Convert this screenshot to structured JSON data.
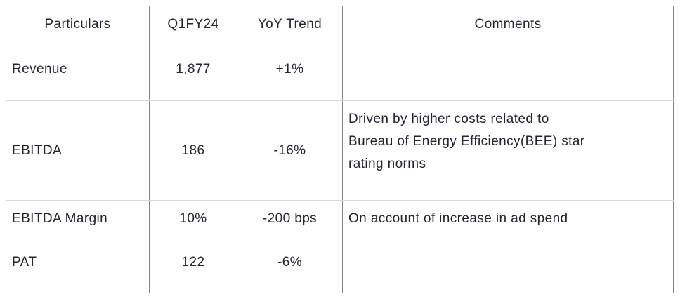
{
  "table": {
    "columns": [
      {
        "key": "particulars",
        "label": "Particulars"
      },
      {
        "key": "q1fy24",
        "label": "Q1FY24"
      },
      {
        "key": "yoy_trend",
        "label": "YoY Trend"
      },
      {
        "key": "comments",
        "label": "Comments"
      }
    ],
    "rows": [
      {
        "particulars": "Revenue",
        "q1fy24": "1,877",
        "yoy_trend": "+1%",
        "comments": ""
      },
      {
        "particulars": "EBITDA",
        "q1fy24": "186",
        "yoy_trend": "-16%",
        "comments": "Driven by higher costs related to\nBureau of Energy Efficiency(BEE) star\nrating norms"
      },
      {
        "particulars": "EBITDA Margin",
        "q1fy24": "10%",
        "yoy_trend": "-200 bps",
        "comments": "On account of increase in ad spend"
      },
      {
        "particulars": "PAT",
        "q1fy24": "122",
        "yoy_trend": "-6%",
        "comments": ""
      }
    ],
    "colors": {
      "text": "#22262e",
      "border_vertical": "#868686",
      "border_horizontal": "#d9d9d9",
      "background": "#ffffff"
    }
  }
}
